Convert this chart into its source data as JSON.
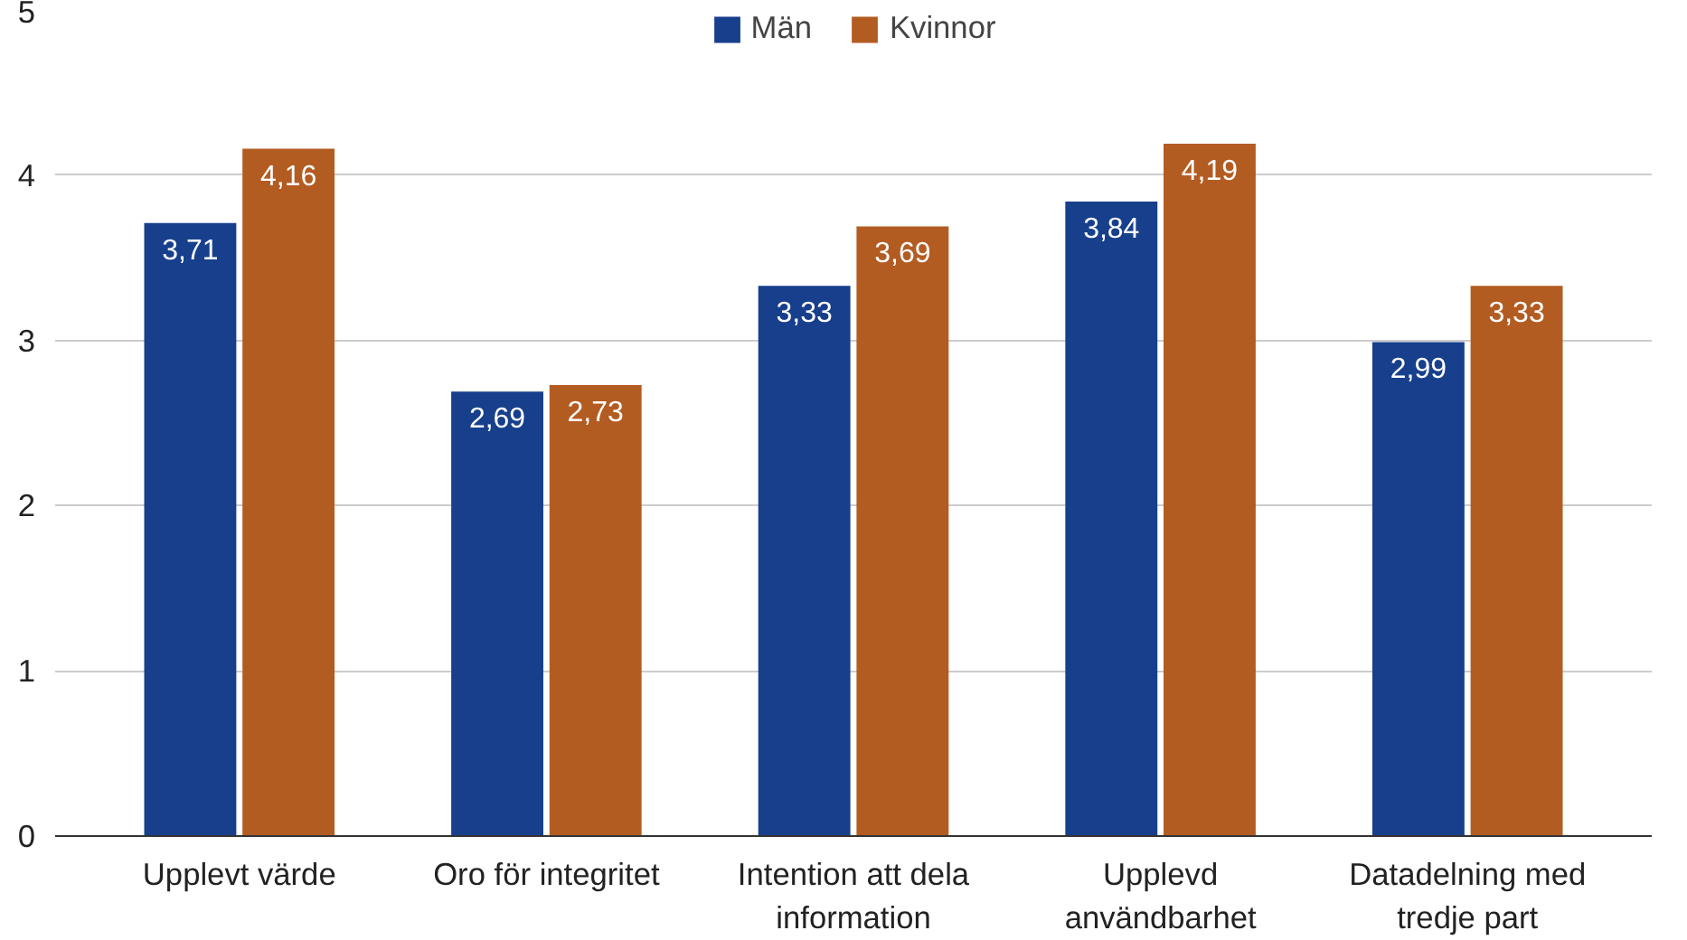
{
  "chart_data": {
    "type": "bar",
    "categories": [
      "Upplevt värde",
      "Oro för integritet",
      "Intention att dela information",
      "Upplevd användbarhet",
      "Datadelning med tredje part"
    ],
    "series": [
      {
        "name": "Män",
        "color": "#173f8c",
        "values": [
          3.71,
          2.69,
          3.33,
          3.84,
          2.99
        ],
        "value_labels": [
          "3,71",
          "2,69",
          "3,33",
          "3,84",
          "2,99"
        ]
      },
      {
        "name": "Kvinnor",
        "color": "#b35c22",
        "values": [
          4.16,
          2.73,
          3.69,
          4.19,
          3.33
        ],
        "value_labels": [
          "4,16",
          "2,73",
          "3,69",
          "4,19",
          "3,33"
        ]
      }
    ],
    "ylim": [
      0,
      5
    ],
    "yticks": [
      0,
      1,
      2,
      3,
      4,
      5
    ],
    "grid": "y",
    "legend": "top"
  }
}
